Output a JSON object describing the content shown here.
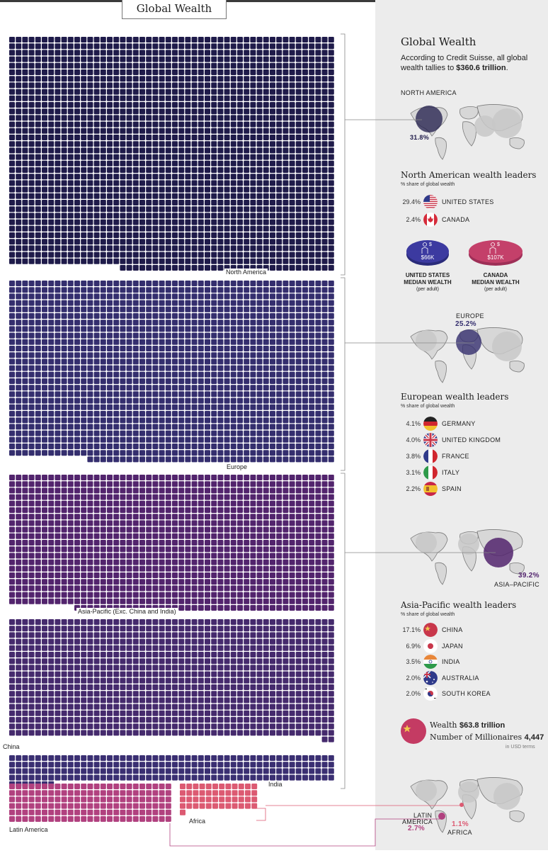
{
  "header": {
    "title": "Global Wealth"
  },
  "chart_data": {
    "type": "waffle",
    "total_wealth": "$360.6 trillion",
    "regions": [
      {
        "name": "North America",
        "share": 31.8,
        "color": "#1f1b4a"
      },
      {
        "name": "Europe",
        "share": 25.2,
        "color": "#342e6e"
      },
      {
        "name": "Asia-Pacific (Exc. China and India)",
        "color": "#52246d"
      },
      {
        "name": "China",
        "share": 17.1,
        "color": "#452a6d"
      },
      {
        "name": "India",
        "share": 3.5,
        "color": "#3a2f72"
      },
      {
        "name": "Latin America",
        "share": 2.7,
        "color": "#b1417f"
      },
      {
        "name": "Africa",
        "share": 1.1,
        "color": "#dc5a72"
      }
    ],
    "asia_pacific_total": 39.2
  },
  "panel": {
    "title": "Global Wealth",
    "intro_text": "According to Credit Suisse, all global wealth tallies to ",
    "intro_value": "$360.6 trillion",
    "intro_end": ".",
    "north_america": {
      "label": "NORTH AMERICA",
      "pct": "31.8%",
      "leaders_title": "North American wealth leaders",
      "leaders_sub": "% share of global wealth",
      "leaders": [
        {
          "pct": "29.4%",
          "country": "UNITED STATES",
          "flag": "us"
        },
        {
          "pct": "2.4%",
          "country": "CANADA",
          "flag": "ca"
        }
      ],
      "median": [
        {
          "value": "$66K",
          "l1": "UNITED STATES",
          "l2": "MEDIAN WEALTH",
          "l3": "(per adult)",
          "color": "#3c3aa0"
        },
        {
          "value": "$107K",
          "l1": "CANADA",
          "l2": "MEDIAN WEALTH",
          "l3": "(per adult)",
          "color": "#c4406a"
        }
      ]
    },
    "europe": {
      "label": "EUROPE",
      "pct": "25.2%",
      "leaders_title": "European wealth leaders",
      "leaders_sub": "% share of global wealth",
      "leaders": [
        {
          "pct": "4.1%",
          "country": "GERMANY",
          "flag": "de"
        },
        {
          "pct": "4.0%",
          "country": "UNITED KINGDOM",
          "flag": "gb"
        },
        {
          "pct": "3.8%",
          "country": "FRANCE",
          "flag": "fr"
        },
        {
          "pct": "3.1%",
          "country": "ITALY",
          "flag": "it"
        },
        {
          "pct": "2.2%",
          "country": "SPAIN",
          "flag": "es"
        }
      ]
    },
    "asia_pacific": {
      "label": "ASIA–PACIFIC",
      "pct": "39.2%",
      "leaders_title": "Asia-Pacific wealth leaders",
      "leaders_sub": "% share of global wealth",
      "leaders": [
        {
          "pct": "17.1%",
          "country": "CHINA",
          "flag": "cn"
        },
        {
          "pct": "6.9%",
          "country": "JAPAN",
          "flag": "jp"
        },
        {
          "pct": "3.5%",
          "country": "INDIA",
          "flag": "in"
        },
        {
          "pct": "2.0%",
          "country": "AUSTRALIA",
          "flag": "au"
        },
        {
          "pct": "2.0%",
          "country": "SOUTH KOREA",
          "flag": "kr"
        }
      ]
    },
    "china_box": {
      "wealth_label": "Wealth ",
      "wealth_value": "$63.8 trillion",
      "millionaires_label": "Number of Millionaires ",
      "millionaires_value": "4,447",
      "note": "in USD terms"
    },
    "south": {
      "latam_label_1": "LATIN",
      "latam_label_2": "AMERICA",
      "latam_pct": "2.7%",
      "africa_pct": "1.1%",
      "africa_label": "AFRICA"
    }
  }
}
